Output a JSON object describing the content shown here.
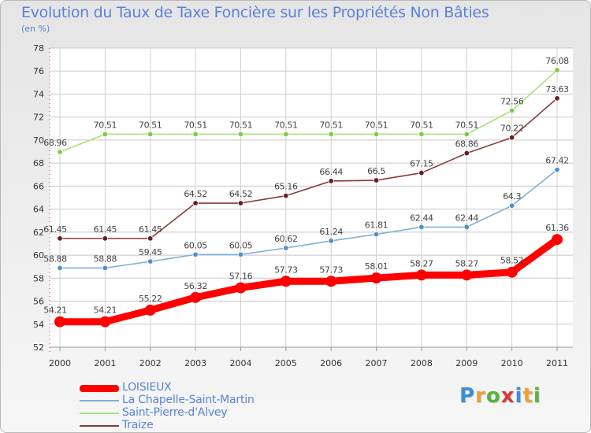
{
  "title": "Evolution du Taux de Taxe Foncière sur les Propriétés Non Bâties",
  "unit": "(en %)",
  "brand": {
    "text": "Proxiti",
    "letter_colors": [
      "#3a8fd8",
      "#e8a23a",
      "#5ab33c",
      "#d83a3a",
      "#3a8fd8",
      "#e8a23a",
      "#5ab33c"
    ]
  },
  "chart_data": {
    "type": "line",
    "x": [
      "2000",
      "2001",
      "2002",
      "2003",
      "2004",
      "2005",
      "2006",
      "2007",
      "2008",
      "2009",
      "2010",
      "2011"
    ],
    "ylim": [
      52,
      78
    ],
    "yticks": [
      "52",
      "54",
      "56",
      "58",
      "60",
      "62",
      "64",
      "66",
      "68",
      "70",
      "72",
      "74",
      "76",
      "78"
    ],
    "grid": true,
    "legend_position": "bottom-left",
    "series": [
      {
        "name": "LOISIEUX",
        "color": "#ff0000",
        "marker_color": "#ff0000",
        "thick": true,
        "values": [
          54.21,
          54.21,
          55.22,
          56.32,
          57.16,
          57.73,
          57.73,
          58.01,
          58.27,
          58.27,
          58.52,
          61.36
        ],
        "labels": [
          "54.21",
          "54.21",
          "55.22",
          "56.32",
          "57.16",
          "57.73",
          "57.73",
          "58.01",
          "58.27",
          "58.27",
          "58.52",
          "61.36"
        ]
      },
      {
        "name": "La Chapelle-Saint-Martin",
        "color": "#7fb0d8",
        "marker_color": "#4f8fd0",
        "values": [
          58.88,
          58.88,
          59.45,
          60.05,
          60.05,
          60.62,
          61.24,
          61.81,
          62.44,
          62.44,
          64.3,
          67.42
        ],
        "labels": [
          "58.88",
          "58.88",
          "59.45",
          "60.05",
          "60.05",
          "60.62",
          "61.24",
          "61.81",
          "62.44",
          "62.44",
          "64.3",
          "67.42"
        ]
      },
      {
        "name": "Saint-Pierre-d'Alvey",
        "color": "#a8e07a",
        "marker_color": "#7dcc45",
        "values": [
          68.96,
          70.51,
          70.51,
          70.51,
          70.51,
          70.51,
          70.51,
          70.51,
          70.51,
          70.51,
          72.56,
          76.08
        ],
        "labels": [
          "68.96",
          "70.51",
          "70.51",
          "70.51",
          "70.51",
          "70.51",
          "70.51",
          "70.51",
          "70.51",
          "70.51",
          "72.56",
          "76.08"
        ]
      },
      {
        "name": "Traize",
        "color": "#8a3a3a",
        "marker_color": "#6b1e1e",
        "values": [
          61.45,
          61.45,
          61.45,
          64.52,
          64.52,
          65.16,
          66.44,
          66.5,
          67.15,
          68.86,
          70.22,
          73.63
        ],
        "labels": [
          "61.45",
          "61.45",
          "61.45",
          "64.52",
          "64.52",
          "65.16",
          "66.44",
          "66.5",
          "67.15",
          "68.86",
          "70.22",
          "73.63"
        ]
      }
    ]
  }
}
